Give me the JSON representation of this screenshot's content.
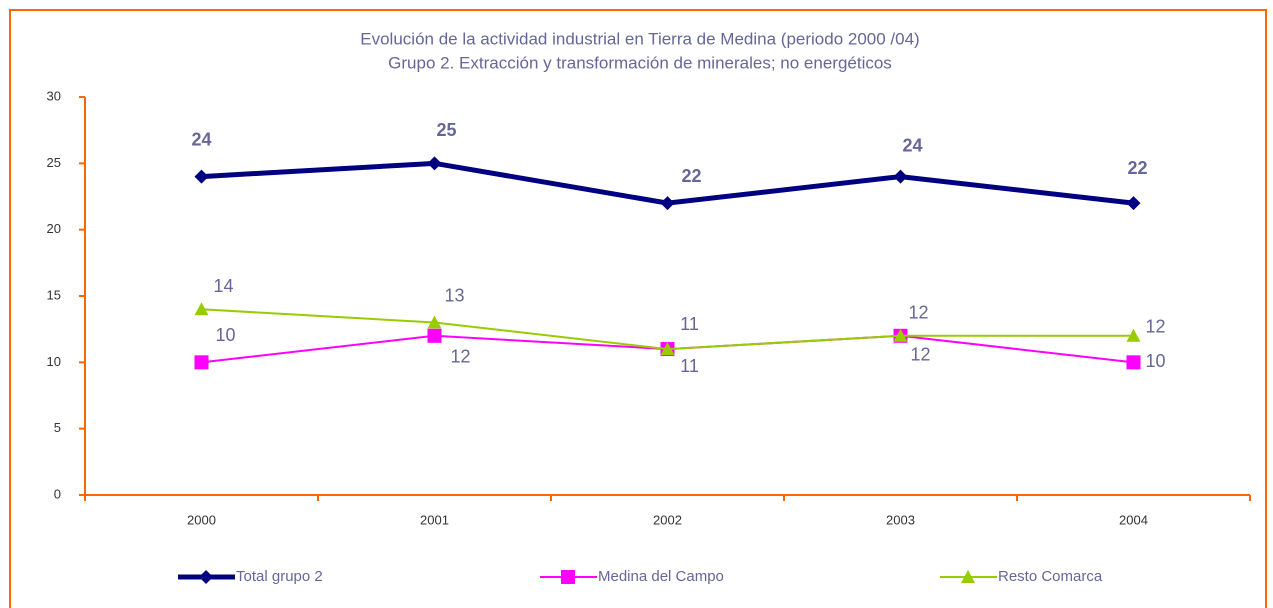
{
  "chart_data": {
    "type": "line",
    "title": "Evolución de la actividad industrial en Tierra de Medina (periodo 2000 /04)",
    "subtitle": "Grupo 2. Extracción y transformación de minerales; no energéticos",
    "categories": [
      "2000",
      "2001",
      "2002",
      "2003",
      "2004"
    ],
    "series": [
      {
        "name": "Total grupo 2",
        "color": "#000080",
        "marker": "diamond",
        "values": [
          24,
          25,
          22,
          24,
          22
        ]
      },
      {
        "name": "Medina del Campo",
        "color": "#ff00ff",
        "marker": "square",
        "values": [
          10,
          12,
          11,
          12,
          10
        ]
      },
      {
        "name": "Resto Comarca",
        "color": "#99cc00",
        "marker": "triangle",
        "values": [
          14,
          13,
          11,
          12,
          12
        ]
      }
    ],
    "ylim": [
      0,
      30
    ],
    "yticks": [
      0,
      5,
      10,
      15,
      20,
      25,
      30
    ],
    "grid": false,
    "legend": "bottom",
    "axis_color": "#ff6600"
  }
}
